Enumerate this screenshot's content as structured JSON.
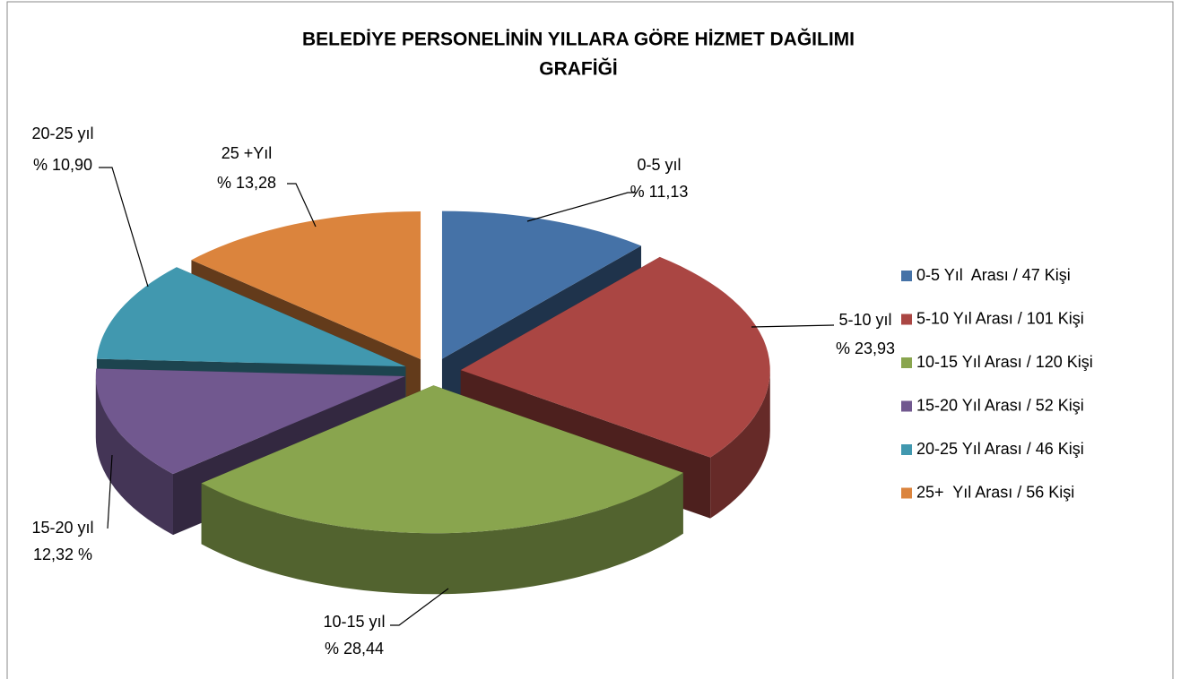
{
  "chart_data": {
    "type": "pie3d",
    "title": [
      "BELEDİYE PERSONELİNİN YILLARA GÖRE HİZMET DAĞILIMI",
      "GRAFİĞİ"
    ],
    "categories": [
      "0-5 Yıl  Arası / 47 Kişi",
      "5-10 Yıl Arası / 101 Kişi",
      "10-15 Yıl Arası / 120 Kişi",
      "15-20 Yıl Arası / 52 Kişi",
      "20-25 Yıl Arası / 46 Kişi",
      "25+  Yıl Arası / 56 Kişi"
    ],
    "values": [
      11.13,
      23.93,
      28.44,
      12.32,
      10.9,
      13.28
    ],
    "label_names": [
      "0-5 yıl",
      "5-10 yıl",
      "10-15 yıl",
      "15-20 yıl",
      "20-25 yıl",
      "25 +Yıl"
    ],
    "value_labels": [
      "% 11,13",
      "% 23,93",
      "% 28,44",
      "12,32 %",
      "% 10,90",
      "% 13,28"
    ],
    "colors": [
      "#4572a7",
      "#aa4643",
      "#89a54e",
      "#71588f",
      "#4198af",
      "#db843d"
    ],
    "legend": "right",
    "exploded": true
  }
}
